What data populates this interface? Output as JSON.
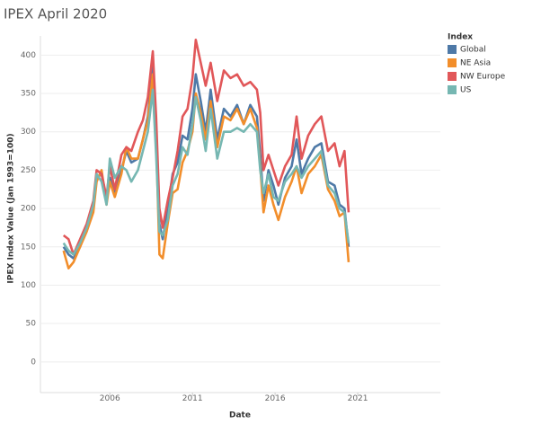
{
  "chart_data": {
    "type": "line",
    "title": "IPEX April 2020",
    "x_label": "Date",
    "y_label": "IPEX Index Value (Jan 1993=100)",
    "legend_title": "Index",
    "legend": "right",
    "grid": true,
    "xlim": [
      2001.8,
      2026
    ],
    "xticks": [
      2006,
      2011,
      2016,
      2021
    ],
    "ylim": [
      -40,
      425
    ],
    "yticks": [
      0,
      50,
      100,
      150,
      200,
      250,
      300,
      350,
      400
    ],
    "x": [
      2003.2,
      2003.5,
      2003.8,
      2004.2,
      2004.6,
      2005.0,
      2005.2,
      2005.5,
      2005.8,
      2006.0,
      2006.3,
      2006.7,
      2007.0,
      2007.3,
      2007.7,
      2008.0,
      2008.3,
      2008.6,
      2008.8,
      2009.0,
      2009.2,
      2009.5,
      2009.8,
      2010.1,
      2010.4,
      2010.7,
      2011.0,
      2011.2,
      2011.5,
      2011.8,
      2012.1,
      2012.5,
      2012.9,
      2013.3,
      2013.7,
      2014.1,
      2014.5,
      2014.9,
      2015.1,
      2015.3,
      2015.6,
      2015.9,
      2016.2,
      2016.6,
      2017.0,
      2017.3,
      2017.6,
      2018.0,
      2018.4,
      2018.8,
      2019.2,
      2019.6,
      2019.9,
      2020.2,
      2020.45
    ],
    "series": [
      {
        "name": "Global",
        "color": "#4e79a7",
        "values": [
          150,
          140,
          135,
          150,
          175,
          200,
          240,
          245,
          210,
          240,
          220,
          250,
          275,
          260,
          265,
          290,
          320,
          385,
          300,
          180,
          160,
          200,
          245,
          260,
          295,
          290,
          330,
          375,
          340,
          300,
          355,
          290,
          330,
          320,
          335,
          310,
          335,
          320,
          270,
          210,
          250,
          230,
          205,
          240,
          255,
          290,
          245,
          265,
          280,
          285,
          235,
          230,
          205,
          200,
          150
        ]
      },
      {
        "name": "NE Asia",
        "color": "#f28e2b",
        "values": [
          145,
          122,
          130,
          150,
          170,
          195,
          235,
          250,
          205,
          235,
          215,
          245,
          280,
          265,
          265,
          290,
          315,
          375,
          290,
          140,
          135,
          180,
          220,
          225,
          260,
          275,
          300,
          350,
          325,
          290,
          340,
          280,
          320,
          315,
          330,
          310,
          330,
          305,
          255,
          195,
          230,
          205,
          185,
          215,
          235,
          255,
          220,
          245,
          255,
          270,
          225,
          210,
          190,
          195,
          130
        ]
      },
      {
        "name": "NW Europe",
        "color": "#e15759",
        "values": [
          165,
          160,
          140,
          160,
          180,
          210,
          250,
          245,
          215,
          255,
          225,
          270,
          280,
          275,
          300,
          315,
          345,
          405,
          320,
          200,
          175,
          210,
          240,
          275,
          320,
          330,
          370,
          420,
          390,
          360,
          390,
          340,
          380,
          370,
          375,
          360,
          365,
          355,
          325,
          250,
          270,
          250,
          230,
          255,
          270,
          320,
          265,
          295,
          310,
          320,
          275,
          285,
          255,
          275,
          195
        ]
      },
      {
        "name": "US",
        "color": "#76b7b2",
        "values": [
          155,
          145,
          140,
          155,
          175,
          205,
          245,
          235,
          205,
          265,
          240,
          255,
          250,
          235,
          250,
          275,
          300,
          355,
          270,
          170,
          165,
          185,
          230,
          245,
          280,
          270,
          310,
          345,
          315,
          275,
          330,
          265,
          300,
          300,
          305,
          300,
          310,
          300,
          250,
          220,
          245,
          215,
          210,
          235,
          245,
          255,
          240,
          255,
          265,
          275,
          230,
          220,
          200,
          195,
          155
        ]
      }
    ]
  }
}
